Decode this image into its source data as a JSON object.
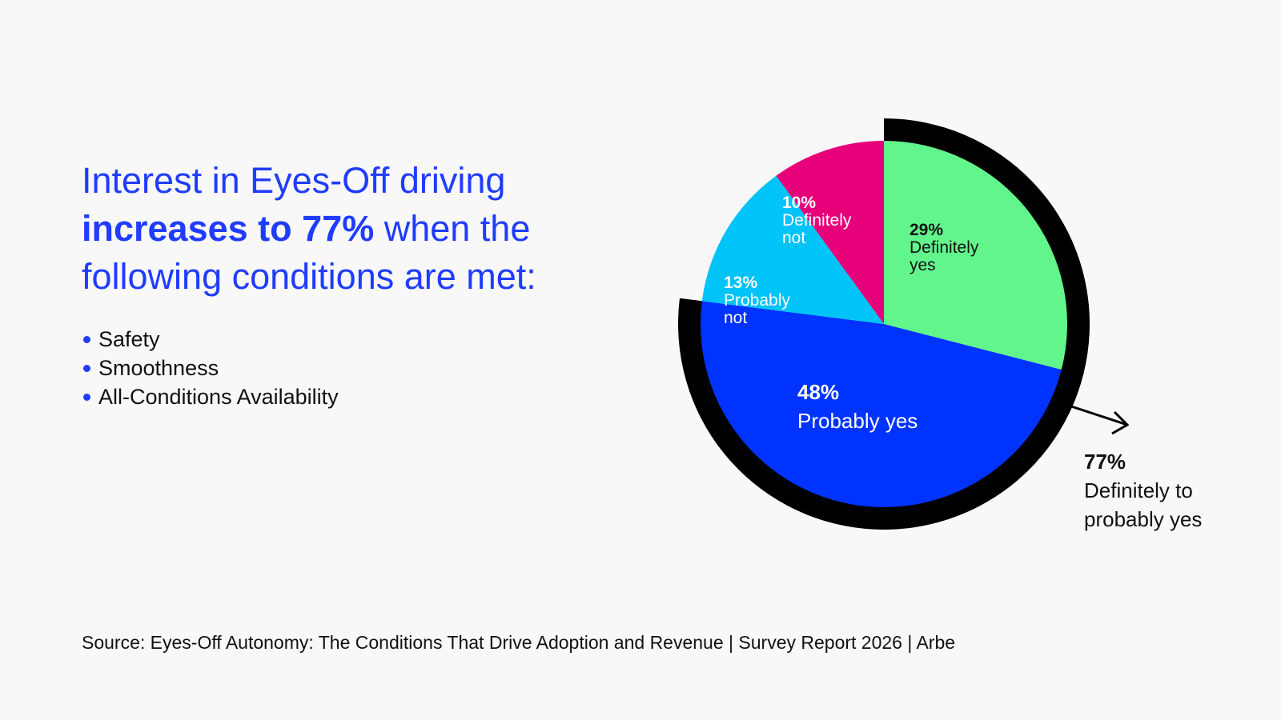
{
  "headline": {
    "line1": "Interest in Eyes-Off driving",
    "bold": "increases to 77%",
    "line2_rest": " when the",
    "line3": "following conditions are met:"
  },
  "bullets": [
    "Safety",
    "Smoothness",
    "All-Conditions Availability"
  ],
  "source": "Source: Eyes-Off Autonomy: The Conditions That Drive Adoption and Revenue | Survey Report 2026 | Arbe",
  "chart_data": {
    "type": "pie",
    "title": "Interest in Eyes-Off driving",
    "start": "top, clockwise",
    "slices": [
      {
        "label": "Definitely yes",
        "value": 29,
        "pct_label": "29%",
        "color": "#62f58c",
        "text_color": "#111111"
      },
      {
        "label": "Probably yes",
        "value": 48,
        "pct_label": "48%",
        "color": "#0033ff",
        "text_color": "#ffffff"
      },
      {
        "label": "Probably not",
        "value": 13,
        "pct_label": "13%",
        "color": "#00c3f7",
        "text_color": "#ffffff"
      },
      {
        "label": "Definitely not",
        "value": 10,
        "pct_label": "10%",
        "color": "#e6007a",
        "text_color": "#ffffff"
      }
    ],
    "annotation": {
      "value": 77,
      "pct_label": "77%",
      "label": "Definitely to probably yes",
      "color": "#000000"
    }
  }
}
